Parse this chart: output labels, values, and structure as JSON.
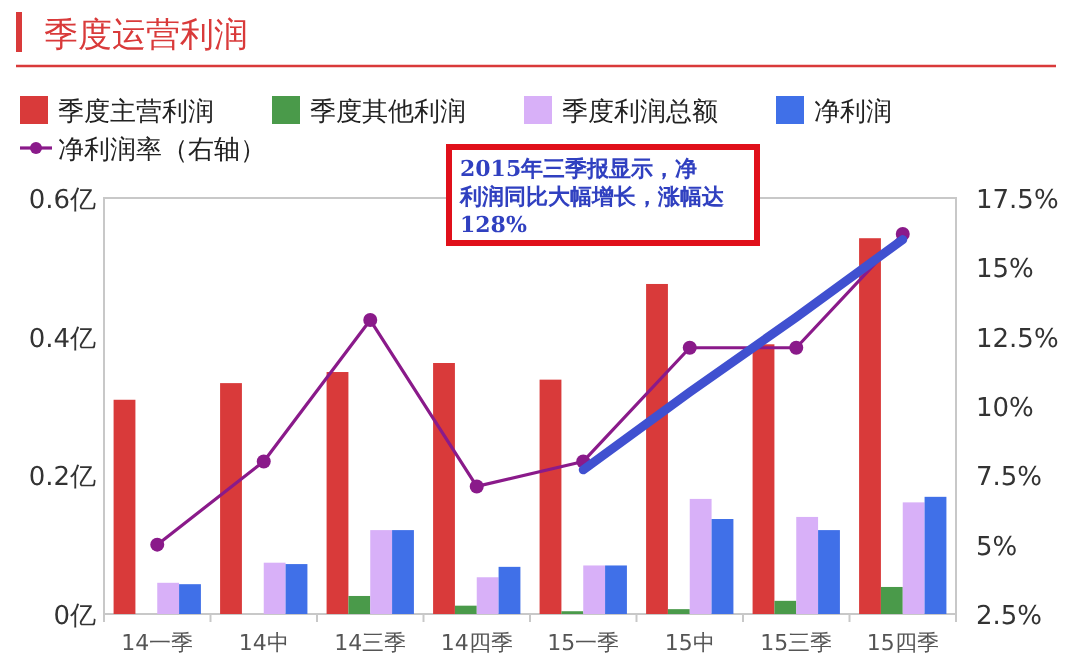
{
  "chart_data": {
    "type": "bar",
    "title": "季度运营利润",
    "categories": [
      "14一季",
      "14中",
      "14三季",
      "14四季",
      "15一季",
      "15中",
      "15三季",
      "15四季"
    ],
    "series": [
      {
        "name": "季度主营利润",
        "color": "#d93a3a",
        "values": [
          0.309,
          0.333,
          0.349,
          0.362,
          0.338,
          0.476,
          0.389,
          0.542
        ]
      },
      {
        "name": "季度其他利润",
        "color": "#4a9a4a",
        "values": [
          null,
          null,
          0.026,
          0.012,
          0.004,
          0.007,
          0.019,
          0.039
        ]
      },
      {
        "name": "季度利润总额",
        "color": "#d8b0f8",
        "values": [
          0.045,
          0.074,
          0.121,
          0.053,
          0.07,
          0.166,
          0.14,
          0.161
        ]
      },
      {
        "name": "净利润",
        "color": "#4070e8",
        "values": [
          0.043,
          0.072,
          0.121,
          0.068,
          0.07,
          0.137,
          0.121,
          0.169
        ]
      },
      {
        "name": "净利润率（右轴）",
        "type": "line",
        "axis": "y2",
        "marker": "circle",
        "color": "#8a1a8a",
        "values": [
          5.0,
          8.0,
          13.1,
          7.1,
          8.0,
          12.1,
          12.1,
          16.2
        ]
      },
      {
        "type": "line",
        "axis": "y2",
        "color": "#4050d0",
        "values": [
          null,
          null,
          null,
          null,
          7.7,
          10.5,
          13.2,
          16.0
        ]
      }
    ],
    "ylim": [
      0,
      0.6
    ],
    "yticks": [
      {
        "value": 0,
        "label": "0亿"
      },
      {
        "value": 0.2,
        "label": "0.2亿"
      },
      {
        "value": 0.4,
        "label": "0.4亿"
      },
      {
        "value": 0.6,
        "label": "0.6亿"
      }
    ],
    "y2lim": [
      2.5,
      17.5
    ],
    "y2ticks": [
      {
        "value": 2.5,
        "label": "2.5%"
      },
      {
        "value": 5,
        "label": "5%"
      },
      {
        "value": 7.5,
        "label": "7.5%"
      },
      {
        "value": 10,
        "label": "10%"
      },
      {
        "value": 12.5,
        "label": "12.5%"
      },
      {
        "value": 15,
        "label": "15%"
      },
      {
        "value": 17.5,
        "label": "17.5%"
      }
    ],
    "annotations": [
      "2015年三季报显示，净利润同比大幅增长，涨幅达128%"
    ],
    "legend": "top",
    "grid": false
  }
}
